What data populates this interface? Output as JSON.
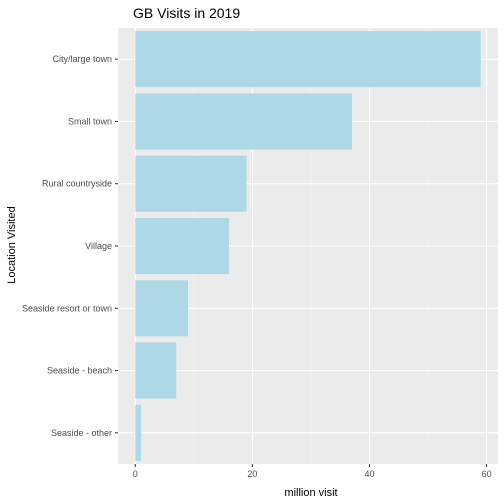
{
  "chart_data": {
    "type": "bar",
    "orientation": "horizontal",
    "title": "GB Visits in 2019",
    "xlabel": "million visit",
    "ylabel": "Location Visited",
    "categories": [
      "City/large town",
      "Small town",
      "Rural countryside",
      "Village",
      "Seaside resort or town",
      "Seaside - beach",
      "Seaside - other"
    ],
    "values": [
      59,
      37,
      19,
      16,
      9,
      7,
      1
    ],
    "xlim": [
      -2.95,
      61.95
    ],
    "xticks": [
      0,
      20,
      40,
      60
    ],
    "grid": true,
    "legend": "none",
    "colors": {
      "bar": "#add8e6",
      "panel": "#ebebeb",
      "grid_major": "#ffffff",
      "grid_minor": "#f5f5f5",
      "tick_label": "#4d4d4d",
      "tick_mark": "#333333"
    }
  }
}
